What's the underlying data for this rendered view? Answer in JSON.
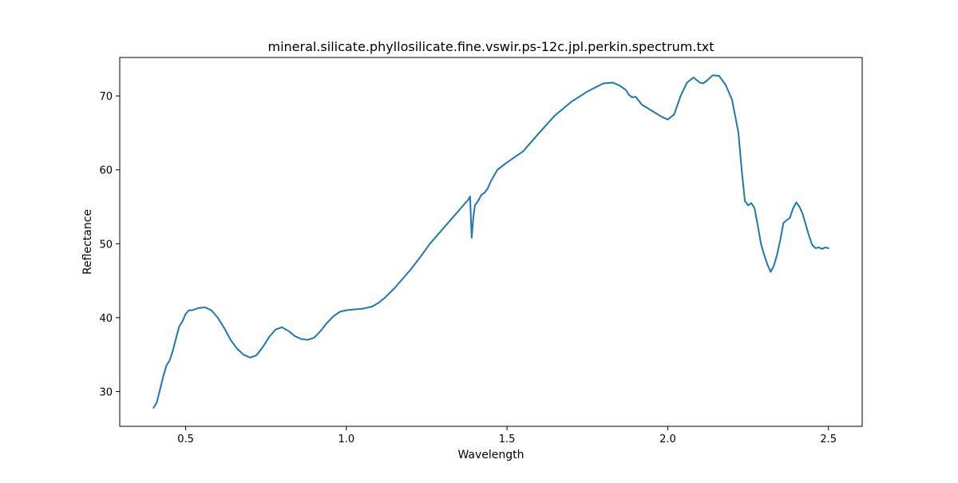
{
  "chart_data": {
    "type": "line",
    "title": "mineral.silicate.phyllosilicate.fine.vswir.ps-12c.jpl.perkin.spectrum.txt",
    "xlabel": "Wavelength",
    "ylabel": "Reflectance",
    "xlim": [
      0.295,
      2.605
    ],
    "ylim": [
      25.3,
      75.2
    ],
    "xticks": [
      {
        "value": 0.5,
        "label": "0.5"
      },
      {
        "value": 1.0,
        "label": "1.0"
      },
      {
        "value": 1.5,
        "label": "1.5"
      },
      {
        "value": 2.0,
        "label": "2.0"
      },
      {
        "value": 2.5,
        "label": "2.5"
      }
    ],
    "yticks": [
      {
        "value": 30,
        "label": "30"
      },
      {
        "value": 40,
        "label": "40"
      },
      {
        "value": 50,
        "label": "50"
      },
      {
        "value": 60,
        "label": "60"
      },
      {
        "value": 70,
        "label": "70"
      }
    ],
    "grid": false,
    "series": [
      {
        "color": "#1f77b4",
        "x": [
          0.4,
          0.41,
          0.42,
          0.43,
          0.44,
          0.45,
          0.46,
          0.47,
          0.48,
          0.49,
          0.5,
          0.51,
          0.52,
          0.54,
          0.56,
          0.58,
          0.6,
          0.62,
          0.64,
          0.66,
          0.68,
          0.7,
          0.72,
          0.74,
          0.76,
          0.78,
          0.8,
          0.82,
          0.84,
          0.86,
          0.88,
          0.9,
          0.92,
          0.94,
          0.96,
          0.98,
          1.0,
          1.02,
          1.05,
          1.08,
          1.1,
          1.12,
          1.15,
          1.18,
          1.2,
          1.23,
          1.26,
          1.27,
          1.3,
          1.33,
          1.36,
          1.38,
          1.385,
          1.39,
          1.395,
          1.4,
          1.41,
          1.42,
          1.43,
          1.44,
          1.45,
          1.47,
          1.5,
          1.55,
          1.6,
          1.65,
          1.7,
          1.75,
          1.8,
          1.83,
          1.85,
          1.87,
          1.88,
          1.89,
          1.9,
          1.92,
          1.95,
          1.98,
          2.0,
          2.02,
          2.04,
          2.06,
          2.08,
          2.1,
          2.11,
          2.12,
          2.14,
          2.16,
          2.18,
          2.2,
          2.22,
          2.23,
          2.24,
          2.25,
          2.26,
          2.27,
          2.28,
          2.29,
          2.3,
          2.31,
          2.32,
          2.33,
          2.34,
          2.35,
          2.36,
          2.37,
          2.38,
          2.39,
          2.4,
          2.41,
          2.42,
          2.43,
          2.44,
          2.45,
          2.46,
          2.47,
          2.48,
          2.49,
          2.5
        ],
        "y": [
          27.8,
          28.5,
          30.2,
          32.0,
          33.5,
          34.2,
          35.5,
          37.2,
          38.8,
          39.5,
          40.5,
          41.0,
          41.0,
          41.3,
          41.4,
          41.0,
          40.0,
          38.6,
          37.0,
          35.8,
          35.0,
          34.6,
          34.9,
          36.0,
          37.4,
          38.4,
          38.7,
          38.2,
          37.5,
          37.1,
          37.0,
          37.3,
          38.2,
          39.3,
          40.2,
          40.8,
          41.0,
          41.1,
          41.2,
          41.5,
          42.0,
          42.7,
          44.0,
          45.5,
          46.5,
          48.2,
          50.0,
          50.5,
          52.0,
          53.5,
          55.0,
          56.0,
          56.4,
          50.8,
          53.5,
          55.2,
          55.8,
          56.6,
          56.9,
          57.5,
          58.5,
          60.0,
          61.0,
          62.5,
          65.0,
          67.4,
          69.2,
          70.6,
          71.7,
          71.8,
          71.4,
          70.8,
          70.1,
          69.8,
          69.9,
          68.8,
          68.0,
          67.2,
          66.8,
          67.5,
          70.0,
          71.8,
          72.5,
          71.8,
          71.7,
          72.0,
          72.8,
          72.7,
          71.5,
          69.5,
          65.0,
          60.0,
          55.8,
          55.2,
          55.5,
          54.8,
          52.5,
          50.0,
          48.5,
          47.2,
          46.2,
          47.0,
          48.5,
          50.5,
          52.8,
          53.2,
          53.5,
          54.8,
          55.6,
          55.0,
          54.0,
          52.5,
          51.0,
          49.8,
          49.4,
          49.5,
          49.3,
          49.5,
          49.4
        ]
      }
    ]
  }
}
